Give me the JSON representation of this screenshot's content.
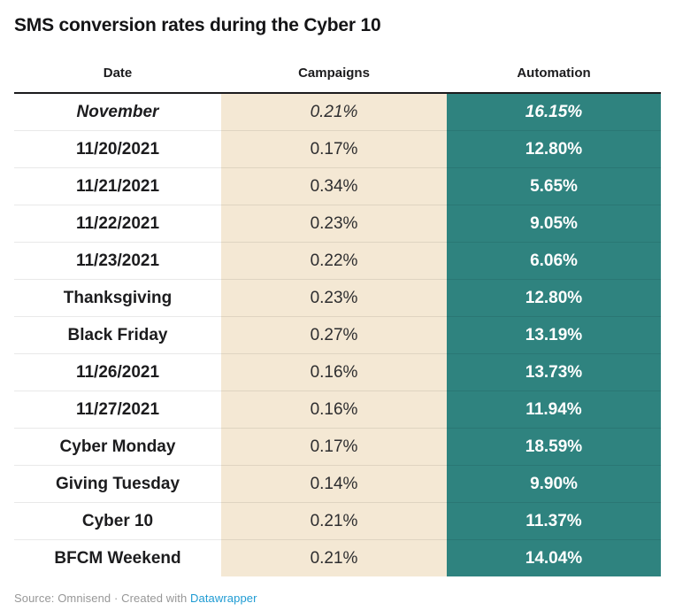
{
  "title": "SMS conversion rates during the Cyber 10",
  "table": {
    "columns": [
      "Date",
      "Campaigns",
      "Automation"
    ],
    "rows": [
      {
        "date": "November",
        "campaigns": "0.21%",
        "automation": "16.15%",
        "italic": true
      },
      {
        "date": "11/20/2021",
        "campaigns": "0.17%",
        "automation": "12.80%",
        "italic": false
      },
      {
        "date": "11/21/2021",
        "campaigns": "0.34%",
        "automation": "5.65%",
        "italic": false
      },
      {
        "date": "11/22/2021",
        "campaigns": "0.23%",
        "automation": "9.05%",
        "italic": false
      },
      {
        "date": "11/23/2021",
        "campaigns": "0.22%",
        "automation": "6.06%",
        "italic": false
      },
      {
        "date": "Thanksgiving",
        "campaigns": "0.23%",
        "automation": "12.80%",
        "italic": false
      },
      {
        "date": "Black Friday",
        "campaigns": "0.27%",
        "automation": "13.19%",
        "italic": false
      },
      {
        "date": "11/26/2021",
        "campaigns": "0.16%",
        "automation": "13.73%",
        "italic": false
      },
      {
        "date": "11/27/2021",
        "campaigns": "0.16%",
        "automation": "11.94%",
        "italic": false
      },
      {
        "date": "Cyber Monday",
        "campaigns": "0.17%",
        "automation": "18.59%",
        "italic": false
      },
      {
        "date": "Giving Tuesday",
        "campaigns": "0.14%",
        "automation": "9.90%",
        "italic": false
      },
      {
        "date": "Cyber 10",
        "campaigns": "0.21%",
        "automation": "11.37%",
        "italic": false
      },
      {
        "date": "BFCM Weekend",
        "campaigns": "0.21%",
        "automation": "14.04%",
        "italic": false
      }
    ]
  },
  "footer": {
    "text": "Source: Omnisend · Created with ",
    "link_label": "Datawrapper"
  },
  "colors": {
    "campaigns_bg": "#f4e8d4",
    "automation_bg": "#2f837f",
    "link": "#1e9bd3",
    "header_rule": "#1b1b1d",
    "text": "#1c1c1e"
  },
  "chart_data": {
    "type": "table",
    "title": "SMS conversion rates during the Cyber 10",
    "columns": [
      "Date",
      "Campaigns",
      "Automation"
    ],
    "categories": [
      "November",
      "11/20/2021",
      "11/21/2021",
      "11/22/2021",
      "11/23/2021",
      "Thanksgiving",
      "Black Friday",
      "11/26/2021",
      "11/27/2021",
      "Cyber Monday",
      "Giving Tuesday",
      "Cyber 10",
      "BFCM Weekend"
    ],
    "series": [
      {
        "name": "Campaigns",
        "unit": "%",
        "values": [
          0.21,
          0.17,
          0.34,
          0.23,
          0.22,
          0.23,
          0.27,
          0.16,
          0.16,
          0.17,
          0.14,
          0.21,
          0.21
        ]
      },
      {
        "name": "Automation",
        "unit": "%",
        "values": [
          16.15,
          12.8,
          5.65,
          9.05,
          6.06,
          12.8,
          13.19,
          13.73,
          11.94,
          18.59,
          9.9,
          11.37,
          14.04
        ]
      }
    ],
    "source": "Omnisend",
    "attribution": "Created with Datawrapper"
  }
}
